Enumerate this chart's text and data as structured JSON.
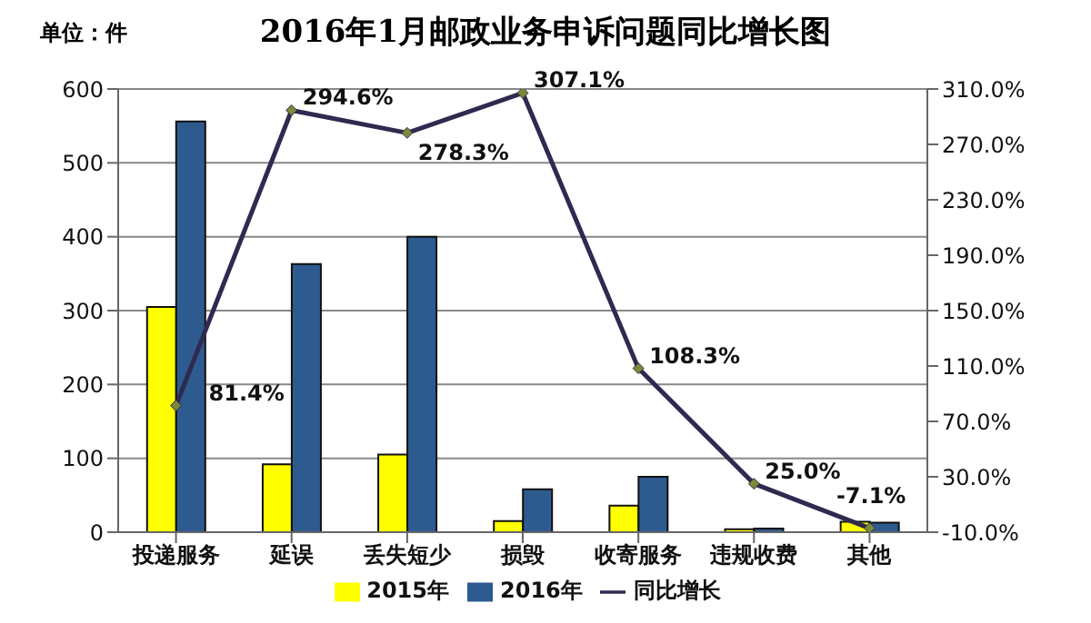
{
  "chart_data": {
    "type": "bar",
    "title": "2016年1月邮政业务申诉问题同比增长图",
    "annotations": [
      "单位：件"
    ],
    "categories": [
      "投递服务",
      "延误",
      "丢失短少",
      "损毁",
      "收寄服务",
      "违规收费",
      "其他"
    ],
    "series": [
      {
        "name": "2015年",
        "color": "#ffff00",
        "values": [
          305,
          92,
          105,
          15,
          36,
          4,
          14
        ]
      },
      {
        "name": "2016年",
        "color": "#2e5b8f",
        "values": [
          556,
          363,
          400,
          58,
          75,
          5,
          13
        ]
      },
      {
        "name": "同比增长",
        "type": "line",
        "axis": "y2",
        "color": "#2f2a4f",
        "marker": "diamond",
        "values": [
          81.4,
          294.6,
          278.3,
          307.1,
          108.3,
          25.0,
          -7.1
        ],
        "value_labels": [
          "81.4%",
          "294.6%",
          "278.3%",
          "307.1%",
          "108.3%",
          "25.0%",
          "-7.1%"
        ]
      }
    ],
    "ylim": [
      0,
      600
    ],
    "yticks": [
      0,
      100,
      200,
      300,
      400,
      500,
      600
    ],
    "y2lim": [
      -10,
      310
    ],
    "y2ticks": [
      {
        "value": -10,
        "label": "-10.0%"
      },
      {
        "value": 30,
        "label": "30.0%"
      },
      {
        "value": 70,
        "label": "70.0%"
      },
      {
        "value": 110,
        "label": "110.0%"
      },
      {
        "value": 150,
        "label": "150.0%"
      },
      {
        "value": 190,
        "label": "190.0%"
      },
      {
        "value": 230,
        "label": "230.0%"
      },
      {
        "value": 270,
        "label": "270.0%"
      },
      {
        "value": 310,
        "label": "310.0%"
      }
    ],
    "grid": "y",
    "legend": "bottom"
  }
}
